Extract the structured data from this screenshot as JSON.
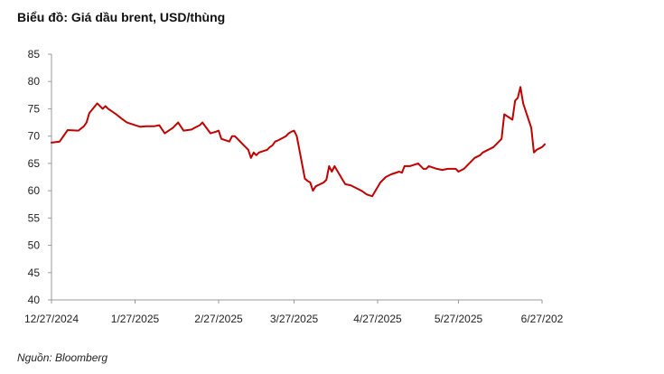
{
  "header": {
    "title": "Biểu đồ: Giá dầu brent, USD/thùng"
  },
  "footer": {
    "source": "Nguồn: Bloomberg"
  },
  "colors": {
    "line": "#c00000",
    "axis": "#9a9a9a",
    "text": "#222222"
  },
  "chart_data": {
    "type": "line",
    "title": "Biểu đồ: Giá dầu brent, USD/thùng",
    "xlabel": "",
    "ylabel": "",
    "ylim": [
      40,
      85
    ],
    "y_ticks": [
      40,
      45,
      50,
      55,
      60,
      65,
      70,
      75,
      80,
      85
    ],
    "x_tick_labels": [
      "12/27/2024",
      "1/27/2025",
      "2/27/2025",
      "3/27/2025",
      "4/27/2025",
      "5/27/2025",
      "6/27/202"
    ],
    "x_tick_dates": [
      "2024-12-27",
      "2025-01-27",
      "2025-02-27",
      "2025-03-27",
      "2025-04-27",
      "2025-05-27",
      "2025-06-27"
    ],
    "grid": false,
    "series": [
      {
        "x": [
          "2024-12-27",
          "2024-12-30",
          "2025-01-02",
          "2025-01-06",
          "2025-01-08",
          "2025-01-09",
          "2025-01-10",
          "2025-01-13",
          "2025-01-15",
          "2025-01-16",
          "2025-01-17",
          "2025-01-20",
          "2025-01-22",
          "2025-01-24",
          "2025-01-27",
          "2025-01-29",
          "2025-01-31",
          "2025-02-03",
          "2025-02-05",
          "2025-02-07",
          "2025-02-10",
          "2025-02-12",
          "2025-02-14",
          "2025-02-17",
          "2025-02-18",
          "2025-02-20",
          "2025-02-21",
          "2025-02-24",
          "2025-02-26",
          "2025-02-27",
          "2025-02-28",
          "2025-03-03",
          "2025-03-04",
          "2025-03-05",
          "2025-03-06",
          "2025-03-07",
          "2025-03-10",
          "2025-03-11",
          "2025-03-12",
          "2025-03-13",
          "2025-03-14",
          "2025-03-17",
          "2025-03-18",
          "2025-03-19",
          "2025-03-20",
          "2025-03-21",
          "2025-03-24",
          "2025-03-25",
          "2025-03-26",
          "2025-03-27",
          "2025-03-28",
          "2025-03-31",
          "2025-04-01",
          "2025-04-02",
          "2025-04-03",
          "2025-04-04",
          "2025-04-07",
          "2025-04-08",
          "2025-04-09",
          "2025-04-10",
          "2025-04-11",
          "2025-04-14",
          "2025-04-15",
          "2025-04-17",
          "2025-04-21",
          "2025-04-23",
          "2025-04-25",
          "2025-04-28",
          "2025-04-30",
          "2025-05-02",
          "2025-05-05",
          "2025-05-06",
          "2025-05-07",
          "2025-05-09",
          "2025-05-12",
          "2025-05-14",
          "2025-05-15",
          "2025-05-16",
          "2025-05-19",
          "2025-05-21",
          "2025-05-23",
          "2025-05-26",
          "2025-05-27",
          "2025-05-29",
          "2025-06-02",
          "2025-06-04",
          "2025-06-05",
          "2025-06-09",
          "2025-06-10",
          "2025-06-11",
          "2025-06-12",
          "2025-06-13",
          "2025-06-16",
          "2025-06-17",
          "2025-06-18",
          "2025-06-19",
          "2025-06-20",
          "2025-06-23",
          "2025-06-24",
          "2025-06-25",
          "2025-06-27",
          "2025-06-28"
        ],
        "values": [
          68.8,
          69.0,
          71.1,
          71.0,
          71.8,
          72.5,
          74.2,
          76.0,
          75.0,
          75.5,
          75.0,
          74.0,
          73.2,
          72.5,
          72.0,
          71.7,
          71.8,
          71.8,
          72.0,
          70.5,
          71.5,
          72.5,
          71.0,
          71.2,
          71.5,
          72.0,
          72.5,
          70.5,
          70.8,
          71.0,
          69.5,
          69.0,
          70.0,
          70.0,
          69.5,
          69.0,
          67.5,
          66.0,
          67.0,
          66.5,
          67.0,
          67.5,
          68.0,
          68.3,
          69.0,
          69.2,
          70.0,
          70.5,
          70.8,
          71.0,
          70.0,
          62.2,
          61.8,
          61.5,
          60.0,
          60.8,
          61.5,
          62.0,
          64.5,
          63.5,
          64.5,
          62.0,
          61.2,
          61.0,
          60.0,
          59.3,
          59.0,
          61.5,
          62.5,
          63.0,
          63.5,
          63.3,
          64.5,
          64.5,
          65.0,
          64.0,
          64.0,
          64.5,
          64.0,
          63.8,
          64.0,
          64.0,
          63.5,
          64.0,
          66.0,
          66.5,
          67.0,
          68.0,
          68.5,
          69.0,
          69.5,
          74.0,
          73.0,
          76.5,
          77.0,
          79.0,
          76.0,
          71.5,
          67.0,
          67.5,
          68.0,
          68.5
        ]
      }
    ]
  }
}
